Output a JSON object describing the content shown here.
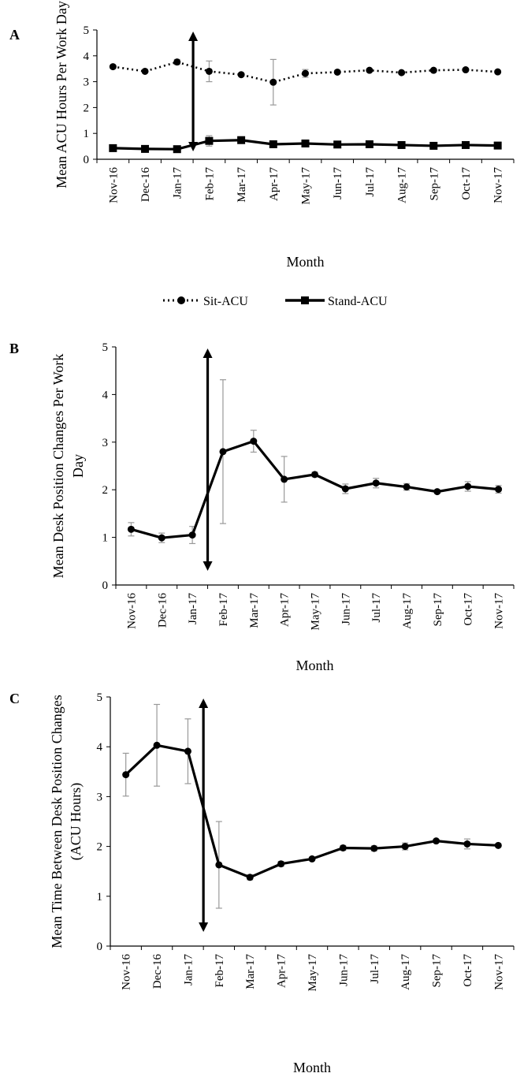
{
  "figure": {
    "legend": {
      "items": [
        {
          "label": "Sit-ACU",
          "style": "dotted",
          "marker": "circle"
        },
        {
          "label": "Stand-ACU",
          "style": "solid",
          "marker": "square"
        }
      ]
    }
  },
  "chart_data": [
    {
      "panel": "A",
      "type": "line",
      "categories": [
        "Nov-16",
        "Dec-16",
        "Jan-17",
        "Feb-17",
        "Mar-17",
        "Apr-17",
        "May-17",
        "Jun-17",
        "Jul-17",
        "Aug-17",
        "Sep-17",
        "Oct-17",
        "Nov-17"
      ],
      "series": [
        {
          "name": "Sit-ACU",
          "style": "dotted",
          "marker": "circle",
          "values": [
            3.58,
            3.4,
            3.76,
            3.4,
            3.27,
            2.98,
            3.32,
            3.37,
            3.44,
            3.35,
            3.44,
            3.46,
            3.38
          ],
          "errors": [
            0.05,
            0.03,
            0.1,
            0.4,
            0.05,
            0.88,
            0.15,
            0.05,
            0.05,
            0.05,
            0.05,
            0.05,
            0.05
          ]
        },
        {
          "name": "Stand-ACU",
          "style": "solid",
          "marker": "square",
          "values": [
            0.43,
            0.4,
            0.39,
            0.71,
            0.74,
            0.58,
            0.61,
            0.57,
            0.58,
            0.55,
            0.52,
            0.55,
            0.53
          ],
          "errors": [
            0.03,
            0.03,
            0.03,
            0.2,
            0.05,
            0.05,
            0.03,
            0.03,
            0.03,
            0.03,
            0.03,
            0.03,
            0.03
          ]
        }
      ],
      "ylim": [
        0,
        5
      ],
      "yticks": [
        "0",
        "1",
        "2",
        "3",
        "4",
        "5"
      ],
      "xlabel": "Month",
      "ylabel": "Mean  ACU Hours Per Work Day",
      "marker_line": {
        "between": [
          "Jan-17",
          "Feb-17"
        ],
        "position": 2.5,
        "style": "double-arrow"
      },
      "grid": false
    },
    {
      "panel": "B",
      "type": "line",
      "categories": [
        "Nov-16",
        "Dec-16",
        "Jan-17",
        "Feb-17",
        "Mar-17",
        "Apr-17",
        "May-17",
        "Jun-17",
        "Jul-17",
        "Aug-17",
        "Sep-17",
        "Oct-17",
        "Nov-17"
      ],
      "series": [
        {
          "values": [
            1.17,
            0.99,
            1.05,
            2.8,
            3.02,
            2.22,
            2.32,
            2.02,
            2.14,
            2.06,
            1.96,
            2.07,
            2.01
          ],
          "errors": [
            0.14,
            0.1,
            0.18,
            1.51,
            0.23,
            0.48,
            0.05,
            0.1,
            0.1,
            0.07,
            0.03,
            0.1,
            0.08
          ]
        }
      ],
      "ylim": [
        0,
        5
      ],
      "yticks": [
        "0",
        "1",
        "2",
        "3",
        "4",
        "5"
      ],
      "xlabel": "Month",
      "ylabel": [
        "Mean Desk Position Changes Per Work",
        "Day"
      ],
      "marker_line": {
        "between": [
          "Jan-17",
          "Feb-17"
        ],
        "position": 2.5,
        "style": "double-arrow"
      },
      "grid": false
    },
    {
      "panel": "C",
      "type": "line",
      "categories": [
        "Nov-16",
        "Dec-16",
        "Jan-17",
        "Feb-17",
        "Mar-17",
        "Apr-17",
        "May-17",
        "Jun-17",
        "Jul-17",
        "Aug-17",
        "Sep-17",
        "Oct-17",
        "Nov-17"
      ],
      "series": [
        {
          "values": [
            3.44,
            4.03,
            3.91,
            1.63,
            1.38,
            1.65,
            1.75,
            1.97,
            1.96,
            2.0,
            2.11,
            2.05,
            2.02
          ],
          "errors": [
            0.43,
            0.82,
            0.65,
            0.87,
            0.05,
            0.05,
            0.03,
            0.05,
            0.05,
            0.07,
            0.03,
            0.1,
            0.03
          ]
        }
      ],
      "ylim": [
        0,
        5
      ],
      "yticks": [
        "0",
        "1",
        "2",
        "3",
        "4",
        "5"
      ],
      "xlabel": "Month",
      "ylabel": [
        "Mean Time Between Desk Position Changes",
        "(ACU Hours)"
      ],
      "marker_line": {
        "between": [
          "Jan-17",
          "Feb-17"
        ],
        "position": 2.5,
        "style": "double-arrow"
      },
      "grid": false
    }
  ]
}
